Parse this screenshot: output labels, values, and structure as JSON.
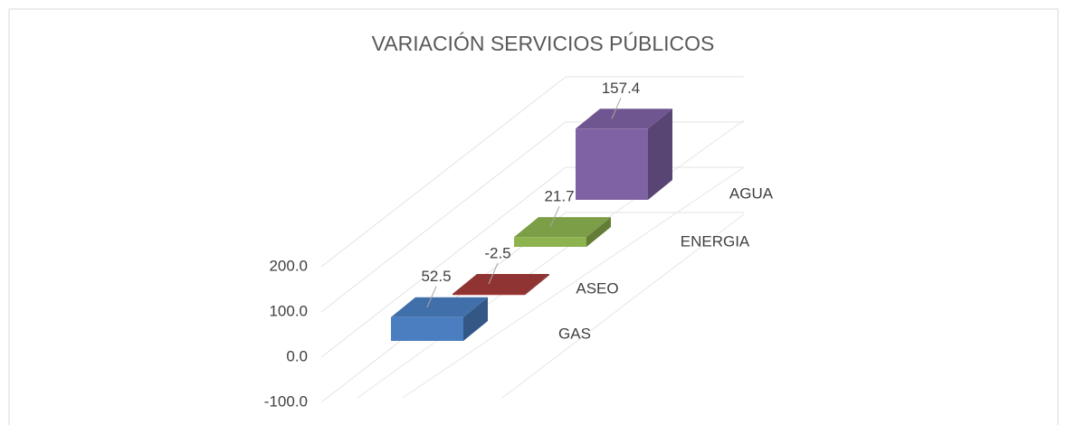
{
  "chart_data": {
    "type": "bar3d",
    "title": "VARIACIÓN SERVICIOS PÚBLICOS",
    "categories": [
      "GAS",
      "ASEO",
      "ENERGIA",
      "AGUA"
    ],
    "values": [
      52.5,
      -2.5,
      21.7,
      157.4
    ],
    "colors": [
      "#4a7ec0",
      "#a33b39",
      "#8db34f",
      "#7f62a4"
    ],
    "ylim": [
      -100,
      200
    ],
    "yticks": [
      {
        "value": -100,
        "label": "-100.0"
      },
      {
        "value": 0,
        "label": "0.0"
      },
      {
        "value": 100,
        "label": "100.0"
      },
      {
        "value": 200,
        "label": "200.0"
      }
    ],
    "grid": true
  }
}
